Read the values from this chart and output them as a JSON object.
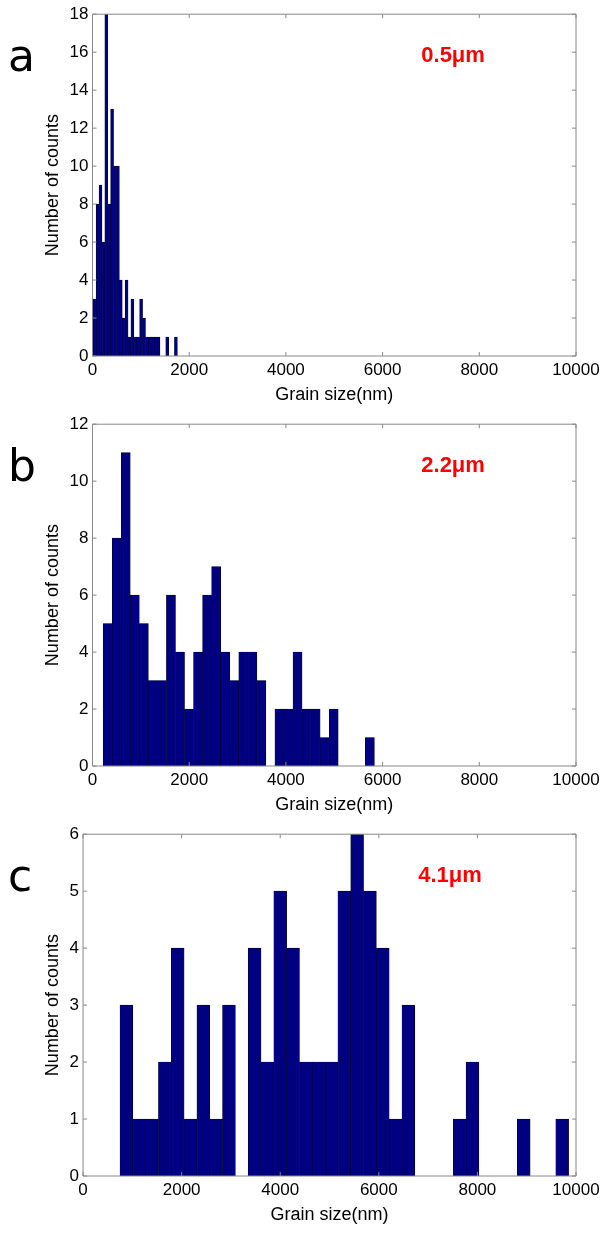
{
  "chart_data": [
    {
      "type": "histogram",
      "title": "a",
      "xlabel": "Grain size(nm)",
      "ylabel": "Number of counts",
      "annotations": [
        "0.5μm"
      ],
      "color": "#000080",
      "bins": [
        15,
        75,
        135,
        195,
        255,
        315,
        375,
        435,
        495,
        555,
        615,
        675,
        735,
        795,
        855,
        915,
        975,
        1035,
        1095,
        1155,
        1215,
        1275,
        1335,
        1395,
        1455,
        1515,
        1575,
        1635,
        1695,
        1755
      ],
      "values": [
        3,
        8,
        9,
        6,
        18,
        8,
        13,
        10,
        10,
        4,
        2,
        4,
        1,
        3,
        1,
        1,
        3,
        2,
        1,
        1,
        1,
        1,
        1,
        0,
        0,
        1,
        0,
        0,
        1
      ],
      "xlim": [
        0,
        10000
      ],
      "xticks": [
        0,
        2000,
        4000,
        6000,
        8000,
        10000
      ],
      "ylim": [
        0,
        18
      ],
      "yticks": [
        0,
        2,
        4,
        6,
        8,
        10,
        12,
        14,
        16,
        18
      ],
      "grid": false
    },
    {
      "type": "histogram",
      "title": "b",
      "xlabel": "Grain size(nm)",
      "ylabel": "Number of counts",
      "annotations": [
        "2.2μm"
      ],
      "color": "#000080",
      "bins": [
        220,
        407,
        594,
        781,
        968,
        1155,
        1342,
        1529,
        1716,
        1903,
        2090,
        2277,
        2464,
        2651,
        2838,
        3025,
        3212,
        3399,
        3586,
        3773,
        3960,
        4147,
        4334,
        4521,
        4708,
        4895,
        5082,
        5269,
        5456,
        5643,
        5830
      ],
      "values": [
        5,
        8,
        11,
        6,
        5,
        3,
        3,
        6,
        4,
        2,
        4,
        6,
        7,
        4,
        3,
        4,
        4,
        3,
        0,
        2,
        2,
        4,
        2,
        2,
        1,
        2,
        0,
        0,
        0,
        1
      ],
      "xlim": [
        0,
        10000
      ],
      "xticks": [
        0,
        2000,
        4000,
        6000,
        8000,
        10000
      ],
      "ylim": [
        0,
        12
      ],
      "yticks": [
        0,
        2,
        4,
        6,
        8,
        10,
        12
      ],
      "grid": false
    },
    {
      "type": "histogram",
      "title": "c",
      "xlabel": "Grain size(nm)",
      "ylabel": "Number of counts",
      "annotations": [
        "4.1μm"
      ],
      "color": "#000080",
      "bins": [
        750,
        1010,
        1270,
        1530,
        1790,
        2050,
        2310,
        2570,
        2830,
        3090,
        3350,
        3610,
        3870,
        4130,
        4390,
        4650,
        4910,
        5170,
        5430,
        5690,
        5950,
        6210,
        6470,
        6730,
        6990,
        7250,
        7510,
        7770,
        8030,
        8290,
        8550,
        8810,
        9070,
        9330,
        9590,
        9850
      ],
      "values": [
        3,
        1,
        1,
        2,
        4,
        1,
        3,
        1,
        3,
        0,
        4,
        2,
        5,
        4,
        2,
        2,
        2,
        5,
        6,
        5,
        4,
        1,
        3,
        0,
        0,
        0,
        1,
        2,
        0,
        0,
        0,
        1,
        0,
        0,
        1
      ],
      "xlim": [
        0,
        10000
      ],
      "xticks": [
        0,
        2000,
        4000,
        6000,
        8000,
        10000
      ],
      "ylim": [
        0,
        6
      ],
      "yticks": [
        0,
        1,
        2,
        3,
        4,
        5,
        6
      ],
      "grid": false
    }
  ]
}
